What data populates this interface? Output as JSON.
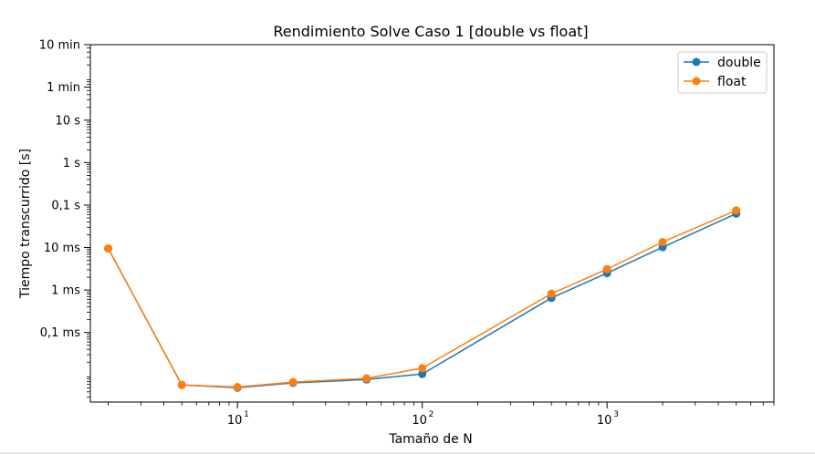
{
  "chart_data": {
    "type": "line",
    "title": "Rendimiento Solve Caso 1 [double vs float]",
    "xlabel": "Tamaño de N",
    "ylabel": "Tiempo transcurrido [s]",
    "xscale": "log",
    "yscale": "log",
    "xlim": [
      1.6,
      8000
    ],
    "ylim": [
      2.3e-06,
      600
    ],
    "x_ticks": [
      {
        "value": 10,
        "base": "10",
        "exp": "1"
      },
      {
        "value": 100,
        "base": "10",
        "exp": "2"
      },
      {
        "value": 1000,
        "base": "10",
        "exp": "3"
      }
    ],
    "y_ticks": [
      {
        "value": 0.0001,
        "label": "0,1 ms"
      },
      {
        "value": 0.001,
        "label": "1 ms"
      },
      {
        "value": 0.01,
        "label": "10 ms"
      },
      {
        "value": 0.1,
        "label": "0,1 s"
      },
      {
        "value": 1,
        "label": "1 s"
      },
      {
        "value": 10,
        "label": "10 s"
      },
      {
        "value": 60,
        "label": "1 min"
      },
      {
        "value": 600,
        "label": "10 min"
      }
    ],
    "x": [
      2,
      5,
      10,
      20,
      50,
      100,
      500,
      1000,
      2000,
      5000
    ],
    "series": [
      {
        "name": "double",
        "color": "#1f77b4",
        "values": [
          0.0095,
          5.8e-06,
          5e-06,
          6.5e-06,
          7.8e-06,
          1.05e-05,
          0.00065,
          0.0025,
          0.0102,
          0.063
        ]
      },
      {
        "name": "float",
        "color": "#ff7f0e",
        "values": [
          0.0095,
          5.8e-06,
          5.2e-06,
          6.8e-06,
          8.3e-06,
          1.45e-05,
          0.00082,
          0.0031,
          0.0135,
          0.075
        ]
      }
    ],
    "grid": false,
    "legend_position": "top-right"
  }
}
